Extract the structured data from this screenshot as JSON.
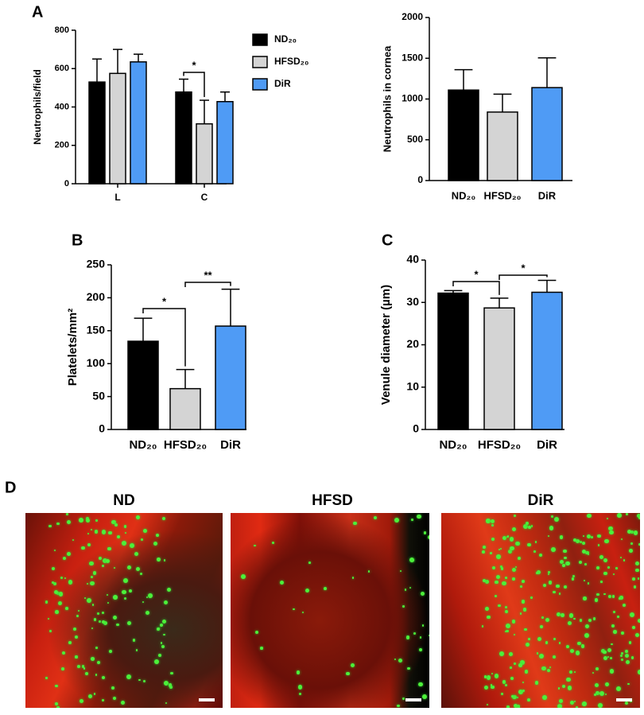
{
  "panel_labels": [
    "A",
    "B",
    "C",
    "D"
  ],
  "chart_data": [
    {
      "type": "grouped_bar",
      "y_label": "Neutrophils/field",
      "categories": [
        "L",
        "C"
      ],
      "series": [
        {
          "name": "ND₂₀",
          "color": "#000000",
          "values": [
            530,
            478
          ],
          "errors": [
            120,
            67
          ]
        },
        {
          "name": "HFSD₂₀",
          "color": "#d4d4d4",
          "values": [
            575,
            312
          ],
          "errors": [
            125,
            123
          ]
        },
        {
          "name": "DiR",
          "color": "#4f9bf5",
          "values": [
            635,
            428
          ],
          "errors": [
            40,
            50
          ]
        }
      ],
      "ylim": [
        0,
        800
      ],
      "yticks": [
        0,
        200,
        400,
        600,
        800
      ],
      "annotations": [
        "*"
      ]
    },
    {
      "type": "bar",
      "y_label": "Neutrophils in cornea",
      "categories": [
        "ND₂₀",
        "HFSD₂₀",
        "DiR"
      ],
      "colors": [
        "#000000",
        "#d4d4d4",
        "#4f9bf5"
      ],
      "values": [
        1110,
        840,
        1140
      ],
      "errors": [
        250,
        220,
        365
      ],
      "ylim": [
        0,
        2000
      ],
      "yticks": [
        0,
        500,
        1000,
        1500,
        2000
      ]
    },
    {
      "type": "bar",
      "y_label": "Platelets/mm²",
      "categories": [
        "ND₂₀",
        "HFSD₂₀",
        "DiR"
      ],
      "colors": [
        "#000000",
        "#d4d4d4",
        "#4f9bf5"
      ],
      "values": [
        134,
        62,
        157
      ],
      "errors": [
        35,
        29,
        56
      ],
      "ylim": [
        0,
        250
      ],
      "yticks": [
        0,
        50,
        100,
        150,
        200,
        250
      ],
      "annotations": [
        "*",
        "**"
      ]
    },
    {
      "type": "bar",
      "y_label": "Venule diameter (µm)",
      "categories": [
        "ND₂₀",
        "HFSD₂₀",
        "DiR"
      ],
      "colors": [
        "#000000",
        "#d4d4d4",
        "#4f9bf5"
      ],
      "values": [
        32.2,
        28.7,
        32.4
      ],
      "errors": [
        0.6,
        2.3,
        2.8
      ],
      "ylim": [
        0,
        40
      ],
      "yticks": [
        0,
        10,
        20,
        30,
        40
      ],
      "annotations": [
        "*",
        "*"
      ]
    }
  ],
  "images": {
    "titles": [
      "ND",
      "HFSD",
      "DiR"
    ]
  }
}
